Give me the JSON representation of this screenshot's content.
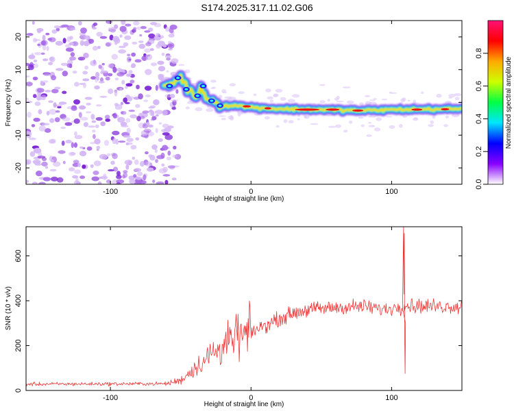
{
  "title": "S174.2025.317.11.02.G06",
  "chart_data": [
    {
      "type": "heatmap",
      "name": "spectrogram",
      "xlabel": "Height of straight line (km)",
      "ylabel": "Frequency (Hz)",
      "xlim": [
        -160,
        150
      ],
      "ylim": [
        -25,
        25
      ],
      "x_ticks": [
        -100,
        0,
        100
      ],
      "y_ticks": [
        -20,
        -10,
        0,
        10,
        20
      ],
      "noise_region": [
        -160,
        -60
      ],
      "ridge": [
        {
          "x": -62,
          "y": 5
        },
        {
          "x": -55,
          "y": 6
        },
        {
          "x": -50,
          "y": 8
        },
        {
          "x": -45,
          "y": 4
        },
        {
          "x": -40,
          "y": 2
        },
        {
          "x": -35,
          "y": 4
        },
        {
          "x": -30,
          "y": 1
        },
        {
          "x": -25,
          "y": 0
        },
        {
          "x": -20,
          "y": -1
        },
        {
          "x": -10,
          "y": -1
        },
        {
          "x": 0,
          "y": -1.5
        },
        {
          "x": 20,
          "y": -2
        },
        {
          "x": 50,
          "y": -2.2
        },
        {
          "x": 80,
          "y": -2.5
        },
        {
          "x": 100,
          "y": -2.2
        },
        {
          "x": 150,
          "y": -2
        }
      ],
      "colorbar": {
        "label": "Normalized spectral amplitude",
        "ticks": [
          "0.0",
          "0.2",
          "0.4",
          "0.6",
          "0.8"
        ],
        "range": [
          0,
          1
        ],
        "colors": [
          "#ffffff",
          "#8800ff",
          "#0000ff",
          "#00e5ff",
          "#00ff44",
          "#ccff00",
          "#ffaa00",
          "#ff0000",
          "#ff1177"
        ]
      }
    },
    {
      "type": "line",
      "name": "snr",
      "xlabel": "Height of straight line (km)",
      "ylabel": "SNR (10 * v/v)",
      "xlim": [
        -160,
        150
      ],
      "ylim": [
        0,
        730
      ],
      "x_ticks": [
        -100,
        0,
        100
      ],
      "y_ticks": [
        0,
        200,
        400,
        600
      ],
      "color": "#ee3333",
      "trend": [
        {
          "x": -160,
          "y": 28
        },
        {
          "x": -60,
          "y": 30
        },
        {
          "x": -50,
          "y": 45
        },
        {
          "x": -40,
          "y": 100
        },
        {
          "x": -30,
          "y": 150
        },
        {
          "x": -20,
          "y": 200
        },
        {
          "x": -10,
          "y": 230
        },
        {
          "x": 0,
          "y": 260
        },
        {
          "x": 10,
          "y": 290
        },
        {
          "x": 20,
          "y": 320
        },
        {
          "x": 30,
          "y": 345
        },
        {
          "x": 40,
          "y": 360
        },
        {
          "x": 60,
          "y": 370
        },
        {
          "x": 80,
          "y": 375
        },
        {
          "x": 95,
          "y": 360
        },
        {
          "x": 110,
          "y": 380
        },
        {
          "x": 130,
          "y": 375
        },
        {
          "x": 150,
          "y": 375
        }
      ],
      "spike": {
        "x": 109,
        "max": 735,
        "min": 75
      }
    }
  ]
}
